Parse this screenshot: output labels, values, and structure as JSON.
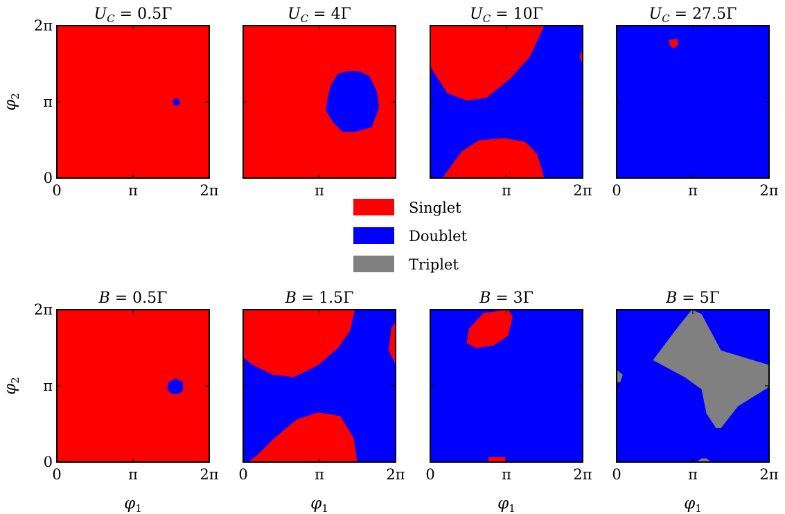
{
  "colors": {
    "singlet": "#ff0000",
    "doublet": "#0000ff",
    "triplet": "#808080"
  },
  "legend": {
    "placement": "center",
    "entries": [
      {
        "label": "Singlet",
        "color": "#ff0000"
      },
      {
        "label": "Doublet",
        "color": "#0000ff"
      },
      {
        "label": "Triplet",
        "color": "#808080"
      }
    ]
  },
  "chart_data": [
    {
      "type": "heatmap",
      "row": 0,
      "col": 0,
      "title": "U_C = 0.5Γ",
      "title_parts": [
        "U",
        "C",
        " = 0.5Γ"
      ],
      "xlabel": "",
      "ylabel": "φ2",
      "xticks": [
        "0",
        "π",
        "2π"
      ],
      "yticks": [
        "0",
        "π",
        "2π"
      ],
      "xlim": [
        0,
        6.283
      ],
      "ylim": [
        0,
        6.283
      ],
      "background": "singlet",
      "regions": [
        {
          "phase": "doublet",
          "points": [
            [
              4.85,
              2.98
            ],
            [
              5.05,
              3.0
            ],
            [
              5.08,
              3.14
            ],
            [
              5.0,
              3.28
            ],
            [
              4.85,
              3.28
            ],
            [
              4.77,
              3.14
            ]
          ]
        }
      ]
    },
    {
      "type": "heatmap",
      "row": 0,
      "col": 1,
      "title": "U_C = 4Γ",
      "title_parts": [
        "U",
        "C",
        " = 4Γ"
      ],
      "xlabel": "",
      "ylabel": "",
      "xticks": [
        "",
        "π",
        ""
      ],
      "yticks": [],
      "xlim": [
        0,
        6.283
      ],
      "ylim": [
        0,
        6.283
      ],
      "background": "singlet",
      "regions": [
        {
          "phase": "doublet",
          "points": [
            [
              3.6,
              3.8
            ],
            [
              3.9,
              4.3
            ],
            [
              4.3,
              4.4
            ],
            [
              4.8,
              4.4
            ],
            [
              5.2,
              4.2
            ],
            [
              5.5,
              3.6
            ],
            [
              5.6,
              2.9
            ],
            [
              5.3,
              2.1
            ],
            [
              4.6,
              1.9
            ],
            [
              4.1,
              1.9
            ],
            [
              3.7,
              2.3
            ],
            [
              3.4,
              2.8
            ],
            [
              3.5,
              3.4
            ]
          ]
        }
      ]
    },
    {
      "type": "heatmap",
      "row": 0,
      "col": 2,
      "title": "U_C = 10Γ",
      "title_parts": [
        "U",
        "C",
        " = 10Γ"
      ],
      "xlabel": "",
      "ylabel": "",
      "xticks": [
        "",
        "π",
        "2π"
      ],
      "yticks": [],
      "xlim": [
        0,
        6.283
      ],
      "ylim": [
        0,
        6.283
      ],
      "background": "doublet",
      "regions": [
        {
          "phase": "singlet",
          "points": [
            [
              0,
              6.283
            ],
            [
              4.7,
              6.283
            ],
            [
              4.1,
              5.0
            ],
            [
              3.3,
              4.1
            ],
            [
              2.3,
              3.3
            ],
            [
              1.5,
              3.2
            ],
            [
              0.7,
              3.5
            ],
            [
              0,
              4.6
            ]
          ]
        },
        {
          "phase": "singlet",
          "points": [
            [
              0.5,
              0
            ],
            [
              4.7,
              0
            ],
            [
              4.4,
              1.0
            ],
            [
              3.9,
              1.5
            ],
            [
              3.0,
              1.65
            ],
            [
              2.0,
              1.55
            ],
            [
              1.3,
              1.1
            ]
          ]
        },
        {
          "phase": "singlet",
          "points": [
            [
              6.283,
              5.3
            ],
            [
              6.15,
              5.0
            ],
            [
              6.283,
              4.7
            ]
          ]
        }
      ]
    },
    {
      "type": "heatmap",
      "row": 0,
      "col": 3,
      "title": "U_C = 27.5Γ",
      "title_parts": [
        "U",
        "C",
        " = 27.5Γ"
      ],
      "xlabel": "",
      "ylabel": "",
      "xticks": [
        "0",
        "π",
        "2π"
      ],
      "yticks": [],
      "xlim": [
        0,
        6.283
      ],
      "ylim": [
        0,
        6.283
      ],
      "background": "doublet",
      "regions": [
        {
          "phase": "singlet",
          "points": [
            [
              2.15,
              5.7
            ],
            [
              2.5,
              5.75
            ],
            [
              2.55,
              5.5
            ],
            [
              2.35,
              5.35
            ],
            [
              2.2,
              5.45
            ]
          ]
        }
      ]
    },
    {
      "type": "heatmap",
      "row": 1,
      "col": 0,
      "title": "B = 0.5Γ",
      "title_parts": [
        "B",
        "",
        " = 0.5Γ"
      ],
      "xlabel": "φ1",
      "ylabel": "φ2",
      "xticks": [
        "0",
        "π",
        "2π"
      ],
      "yticks": [
        "0",
        "π",
        "2π"
      ],
      "xlim": [
        0,
        6.283
      ],
      "ylim": [
        0,
        6.283
      ],
      "background": "singlet",
      "regions": [
        {
          "phase": "doublet",
          "points": [
            [
              4.6,
              3.3
            ],
            [
              4.9,
              3.45
            ],
            [
              5.2,
              3.3
            ],
            [
              5.2,
              2.95
            ],
            [
              5.0,
              2.8
            ],
            [
              4.75,
              2.8
            ],
            [
              4.55,
              3.0
            ]
          ]
        }
      ]
    },
    {
      "type": "heatmap",
      "row": 1,
      "col": 1,
      "title": "B = 1.5Γ",
      "title_parts": [
        "B",
        "",
        " = 1.5Γ"
      ],
      "xlabel": "φ1",
      "ylabel": "",
      "xticks": [
        "0",
        "π",
        "2π"
      ],
      "yticks": [],
      "xlim": [
        0,
        6.283
      ],
      "ylim": [
        0,
        6.283
      ],
      "background": "doublet",
      "regions": [
        {
          "phase": "singlet",
          "points": [
            [
              0,
              6.283
            ],
            [
              4.6,
              6.283
            ],
            [
              4.4,
              5.4
            ],
            [
              3.9,
              4.7
            ],
            [
              3.1,
              4.0
            ],
            [
              2.1,
              3.5
            ],
            [
              1.2,
              3.6
            ],
            [
              0.4,
              4.0
            ],
            [
              0,
              4.3
            ]
          ]
        },
        {
          "phase": "singlet",
          "points": [
            [
              0.2,
              0
            ],
            [
              4.7,
              0
            ],
            [
              4.55,
              1.0
            ],
            [
              4.0,
              1.9
            ],
            [
              3.1,
              2.05
            ],
            [
              2.2,
              1.75
            ],
            [
              1.3,
              1.0
            ],
            [
              0.6,
              0.3
            ]
          ]
        },
        {
          "phase": "singlet",
          "points": [
            [
              6.283,
              5.8
            ],
            [
              6.1,
              5.5
            ],
            [
              6.0,
              4.6
            ],
            [
              6.283,
              4.0
            ]
          ]
        }
      ]
    },
    {
      "type": "heatmap",
      "row": 1,
      "col": 2,
      "title": "B = 3Γ",
      "title_parts": [
        "B",
        "",
        " = 3Γ"
      ],
      "xlabel": "φ1",
      "ylabel": "",
      "xticks": [
        "0",
        "π",
        "2π"
      ],
      "yticks": [],
      "xlim": [
        0,
        6.283
      ],
      "ylim": [
        0,
        6.283
      ],
      "background": "doublet",
      "regions": [
        {
          "phase": "singlet",
          "points": [
            [
              1.5,
              4.9
            ],
            [
              1.9,
              4.7
            ],
            [
              2.6,
              4.8
            ],
            [
              3.2,
              5.2
            ],
            [
              3.4,
              6.0
            ],
            [
              3.2,
              6.283
            ],
            [
              2.2,
              6.15
            ],
            [
              1.6,
              5.5
            ]
          ]
        },
        {
          "phase": "singlet",
          "points": [
            [
              2.4,
              0
            ],
            [
              3.1,
              0
            ],
            [
              3.1,
              0.2
            ],
            [
              2.4,
              0.2
            ]
          ]
        }
      ]
    },
    {
      "type": "heatmap",
      "row": 1,
      "col": 3,
      "title": "B = 5Γ",
      "title_parts": [
        "B",
        "",
        " = 5Γ"
      ],
      "xlabel": "φ1",
      "ylabel": "",
      "xticks": [
        "0",
        "π",
        "2π"
      ],
      "yticks": [],
      "xlim": [
        0,
        6.283
      ],
      "ylim": [
        0,
        6.283
      ],
      "background": "doublet",
      "regions": [
        {
          "phase": "triplet",
          "points": [
            [
              1.5,
              4.2
            ],
            [
              2.4,
              5.4
            ],
            [
              3.1,
              6.283
            ],
            [
              3.5,
              6.1
            ],
            [
              4.3,
              4.6
            ],
            [
              6.283,
              4.0
            ],
            [
              6.283,
              3.1
            ],
            [
              5.0,
              2.3
            ],
            [
              4.3,
              1.4
            ],
            [
              4.1,
              1.4
            ],
            [
              3.7,
              2.0
            ],
            [
              3.5,
              3.0
            ],
            [
              2.8,
              3.5
            ]
          ]
        },
        {
          "phase": "triplet",
          "points": [
            [
              0,
              3.8
            ],
            [
              0.25,
              3.6
            ],
            [
              0.15,
              3.3
            ],
            [
              0,
              3.3
            ]
          ]
        },
        {
          "phase": "triplet",
          "points": [
            [
              3.3,
              0
            ],
            [
              3.9,
              0
            ],
            [
              3.7,
              0.15
            ],
            [
              3.5,
              0.15
            ]
          ]
        }
      ]
    }
  ]
}
